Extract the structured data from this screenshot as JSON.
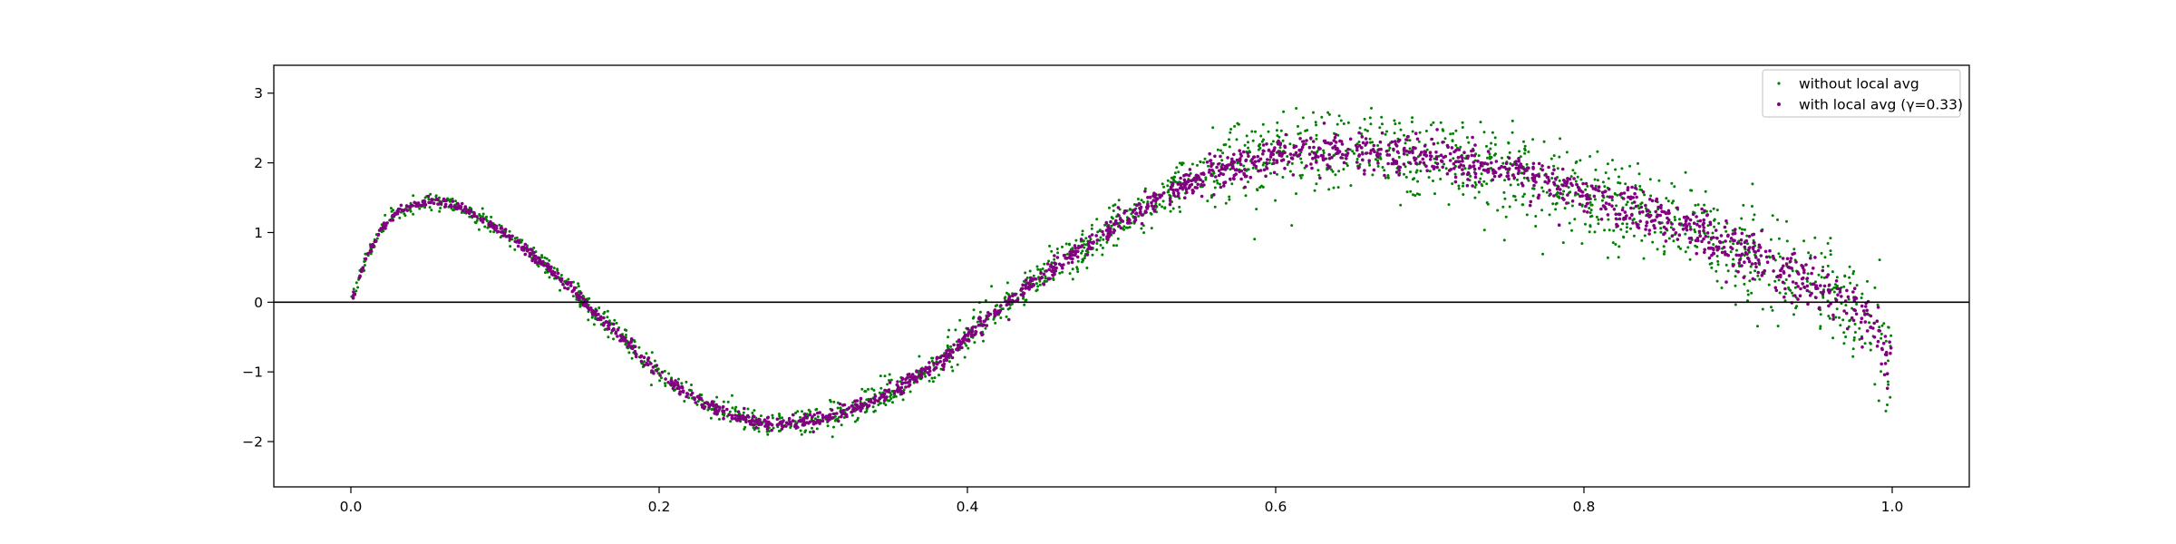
{
  "chart_data": {
    "type": "scatter",
    "title": "",
    "xlabel": "",
    "ylabel": "",
    "xlim": [
      -0.05,
      1.05
    ],
    "ylim": [
      -2.65,
      3.4
    ],
    "x_ticks": [
      0.0,
      0.2,
      0.4,
      0.6,
      0.8,
      1.0
    ],
    "x_tick_labels": [
      "0.0",
      "0.2",
      "0.4",
      "0.6",
      "0.8",
      "1.0"
    ],
    "y_ticks": [
      -2,
      -1,
      0,
      1,
      2,
      3
    ],
    "y_tick_labels": [
      "−2",
      "−1",
      "0",
      "1",
      "2",
      "3"
    ],
    "grid": false,
    "legend_position": "top-right",
    "reference_line": {
      "orientation": "horizontal",
      "y": 0,
      "color": "#000000"
    },
    "series": [
      {
        "name": "without local avg",
        "color": "#008000",
        "marker": "point",
        "spread": "wide",
        "points_approx": 2000,
        "underlying_curve": {
          "x": [
            0.0,
            0.01,
            0.02,
            0.03,
            0.05,
            0.07,
            0.1,
            0.13,
            0.15,
            0.18,
            0.2,
            0.22,
            0.25,
            0.27,
            0.3,
            0.33,
            0.35,
            0.38,
            0.4,
            0.42,
            0.45,
            0.48,
            0.5,
            0.53,
            0.55,
            0.58,
            0.6,
            0.63,
            0.65,
            0.68,
            0.7,
            0.73,
            0.75,
            0.78,
            0.8,
            0.83,
            0.85,
            0.88,
            0.9,
            0.93,
            0.95,
            0.97,
            0.99,
            1.0
          ],
          "y": [
            0.0,
            0.65,
            1.05,
            1.3,
            1.45,
            1.38,
            1.0,
            0.45,
            0.02,
            -0.6,
            -1.0,
            -1.35,
            -1.65,
            -1.75,
            -1.7,
            -1.5,
            -1.3,
            -0.9,
            -0.5,
            -0.1,
            0.4,
            0.85,
            1.15,
            1.55,
            1.78,
            2.0,
            2.1,
            2.18,
            2.2,
            2.15,
            2.1,
            1.98,
            1.85,
            1.7,
            1.55,
            1.32,
            1.15,
            0.95,
            0.75,
            0.5,
            0.25,
            0.0,
            -0.35,
            -1.0
          ]
        }
      },
      {
        "name": "with local avg (γ=0.33)",
        "color": "#800080",
        "marker": "point",
        "spread": "narrow",
        "points_approx": 2000,
        "underlying_curve": {
          "x": [
            0.0,
            0.01,
            0.02,
            0.03,
            0.05,
            0.07,
            0.1,
            0.13,
            0.15,
            0.18,
            0.2,
            0.22,
            0.25,
            0.27,
            0.3,
            0.33,
            0.35,
            0.38,
            0.4,
            0.42,
            0.45,
            0.48,
            0.5,
            0.53,
            0.55,
            0.58,
            0.6,
            0.63,
            0.65,
            0.68,
            0.7,
            0.73,
            0.75,
            0.78,
            0.8,
            0.83,
            0.85,
            0.88,
            0.9,
            0.93,
            0.95,
            0.97,
            0.99,
            1.0
          ],
          "y": [
            0.0,
            0.65,
            1.05,
            1.3,
            1.45,
            1.38,
            1.0,
            0.45,
            0.02,
            -0.6,
            -1.0,
            -1.35,
            -1.65,
            -1.75,
            -1.7,
            -1.5,
            -1.3,
            -0.9,
            -0.5,
            -0.1,
            0.4,
            0.85,
            1.15,
            1.55,
            1.78,
            2.0,
            2.1,
            2.18,
            2.2,
            2.15,
            2.1,
            1.98,
            1.85,
            1.7,
            1.55,
            1.32,
            1.15,
            0.95,
            0.75,
            0.5,
            0.25,
            0.0,
            -0.35,
            -1.0
          ]
        }
      }
    ]
  }
}
